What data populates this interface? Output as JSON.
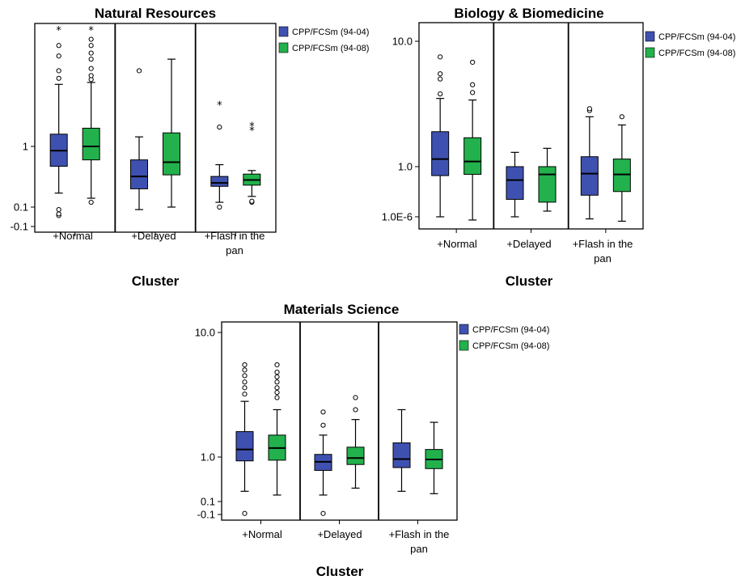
{
  "colors": {
    "series1": "#3f51b0",
    "series2": "#22b14c",
    "frame": "#000000",
    "background": "#ffffff"
  },
  "chart_data": [
    {
      "type": "box",
      "title": "Natural Resources",
      "xlabel": "Cluster",
      "ylabel": "",
      "y_scale": "log-like",
      "y_ticks": [
        "1",
        "0.1",
        "-0.1"
      ],
      "categories": [
        "+Normal",
        "+Delayed",
        "+Flash in the pan"
      ],
      "legend": {
        "position": "top-right",
        "entries": [
          "CPP/FCSm (94-04)",
          "CPP/FCSm (94-08)"
        ]
      },
      "series": [
        {
          "name": "CPP/FCSm (94-04)",
          "boxes": [
            {
              "category": "+Normal",
              "min": 0.17,
              "q1": 0.47,
              "median": 0.85,
              "q3": 1.4,
              "max": 5.5,
              "outliers": [
                {
                  "value": 0.07,
                  "marker": "circle"
                },
                {
                  "value": 0.075,
                  "marker": "circle"
                },
                {
                  "value": 0.09,
                  "marker": "circle"
                },
                {
                  "value": 6.5,
                  "marker": "circle"
                },
                {
                  "value": 8,
                  "marker": "circle"
                },
                {
                  "value": 12,
                  "marker": "circle"
                },
                {
                  "value": 16,
                  "marker": "circle"
                },
                {
                  "value": 25,
                  "marker": "star"
                }
              ]
            },
            {
              "category": "+Delayed",
              "min": 0.09,
              "q1": 0.2,
              "median": 0.32,
              "q3": 0.6,
              "max": 1.3,
              "outliers": [
                {
                  "value": 8,
                  "marker": "circle"
                }
              ]
            },
            {
              "category": "+Flash in the pan",
              "min": 0.12,
              "q1": 0.22,
              "median": 0.25,
              "q3": 0.32,
              "max": 0.5,
              "outliers": [
                {
                  "value": 0.1,
                  "marker": "circle"
                },
                {
                  "value": 1.7,
                  "marker": "circle"
                },
                {
                  "value": 3.2,
                  "marker": "star"
                }
              ]
            }
          ]
        },
        {
          "name": "CPP/FCSm (94-08)",
          "boxes": [
            {
              "category": "+Normal",
              "min": 0.14,
              "q1": 0.6,
              "median": 1.0,
              "q3": 1.65,
              "max": 5.8,
              "outliers": [
                {
                  "value": 0.12,
                  "marker": "circle"
                },
                {
                  "value": 6.3,
                  "marker": "circle"
                },
                {
                  "value": 7,
                  "marker": "circle"
                },
                {
                  "value": 8.5,
                  "marker": "circle"
                },
                {
                  "value": 11,
                  "marker": "circle"
                },
                {
                  "value": 13,
                  "marker": "circle"
                },
                {
                  "value": 16,
                  "marker": "circle"
                },
                {
                  "value": 19,
                  "marker": "circle"
                },
                {
                  "value": 25,
                  "marker": "star"
                }
              ]
            },
            {
              "category": "+Delayed",
              "min": 0.1,
              "q1": 0.34,
              "median": 0.55,
              "q3": 1.45,
              "max": 11,
              "outliers": []
            },
            {
              "category": "+Flash in the pan",
              "min": 0.15,
              "q1": 0.23,
              "median": 0.28,
              "q3": 0.35,
              "max": 0.4,
              "outliers": [
                {
                  "value": 0.12,
                  "marker": "circle"
                },
                {
                  "value": 0.125,
                  "marker": "circle"
                },
                {
                  "value": 1.6,
                  "marker": "star"
                },
                {
                  "value": 1.8,
                  "marker": "star"
                }
              ]
            }
          ]
        }
      ]
    },
    {
      "type": "box",
      "title": "Biology & Biomedicine",
      "xlabel": "Cluster",
      "ylabel": "",
      "y_scale": "log-like",
      "y_ticks": [
        "10.0",
        "1.0",
        "1.0E-6"
      ],
      "categories": [
        "+Normal",
        "+Delayed",
        "+Flash in the pan"
      ],
      "legend": {
        "position": "top-right",
        "entries": [
          "CPP/FCSm (94-04)",
          "CPP/FCSm (94-08)"
        ]
      },
      "series": [
        {
          "name": "CPP/FCSm (94-04)",
          "boxes": [
            {
              "category": "+Normal",
              "min": 0.2,
              "q1": 0.75,
              "median": 1.15,
              "q3": 1.9,
              "max": 3.5,
              "outliers": [
                {
                  "value": 3.8,
                  "marker": "circle"
                },
                {
                  "value": 5,
                  "marker": "circle"
                },
                {
                  "value": 5.5,
                  "marker": "circle"
                },
                {
                  "value": 7.5,
                  "marker": "circle"
                }
              ]
            },
            {
              "category": "+Delayed",
              "min": 0.2,
              "q1": 0.35,
              "median": 0.65,
              "q3": 1.0,
              "max": 1.3,
              "outliers": []
            },
            {
              "category": "+Flash in the pan",
              "min": 0.18,
              "q1": 0.4,
              "median": 0.8,
              "q3": 1.2,
              "max": 2.5,
              "outliers": [
                {
                  "value": 2.8,
                  "marker": "circle"
                },
                {
                  "value": 2.9,
                  "marker": "circle"
                }
              ]
            }
          ]
        },
        {
          "name": "CPP/FCSm (94-08)",
          "boxes": [
            {
              "category": "+Normal",
              "min": 0.17,
              "q1": 0.78,
              "median": 1.1,
              "q3": 1.7,
              "max": 3.4,
              "outliers": [
                {
                  "value": 3.9,
                  "marker": "circle"
                },
                {
                  "value": 4.5,
                  "marker": "circle"
                },
                {
                  "value": 6.8,
                  "marker": "circle"
                }
              ]
            },
            {
              "category": "+Delayed",
              "min": 0.24,
              "q1": 0.32,
              "median": 0.78,
              "q3": 1.0,
              "max": 1.4,
              "outliers": []
            },
            {
              "category": "+Flash in the pan",
              "min": 0.16,
              "q1": 0.45,
              "median": 0.78,
              "q3": 1.15,
              "max": 2.15,
              "outliers": [
                {
                  "value": 2.5,
                  "marker": "circle"
                }
              ]
            }
          ]
        }
      ]
    },
    {
      "type": "box",
      "title": "Materials Science",
      "xlabel": "Cluster",
      "ylabel": "",
      "y_scale": "log-like",
      "y_ticks": [
        "10.0",
        "1.0",
        "0.1",
        "-0.1"
      ],
      "categories": [
        "+Normal",
        "+Delayed",
        "+Flash in the pan"
      ],
      "legend": {
        "position": "top-right",
        "entries": [
          "CPP/FCSm (94-04)",
          "CPP/FCSm (94-08)"
        ]
      },
      "series": [
        {
          "name": "CPP/FCSm (94-04)",
          "boxes": [
            {
              "category": "+Normal",
              "min": 0.17,
              "q1": 0.82,
              "median": 1.15,
              "q3": 1.6,
              "max": 2.8,
              "outliers": [
                {
                  "value": 0.06,
                  "marker": "circle"
                },
                {
                  "value": 3.2,
                  "marker": "circle"
                },
                {
                  "value": 3.6,
                  "marker": "circle"
                },
                {
                  "value": 4.0,
                  "marker": "circle"
                },
                {
                  "value": 4.5,
                  "marker": "circle"
                },
                {
                  "value": 5.0,
                  "marker": "circle"
                },
                {
                  "value": 5.5,
                  "marker": "circle"
                }
              ]
            },
            {
              "category": "+Delayed",
              "min": 0.14,
              "q1": 0.5,
              "median": 0.78,
              "q3": 1.05,
              "max": 1.5,
              "outliers": [
                {
                  "value": 0.06,
                  "marker": "circle"
                },
                {
                  "value": 1.8,
                  "marker": "circle"
                },
                {
                  "value": 2.3,
                  "marker": "circle"
                }
              ]
            },
            {
              "category": "+Flash in the pan",
              "min": 0.17,
              "q1": 0.58,
              "median": 0.9,
              "q3": 1.3,
              "max": 2.4,
              "outliers": []
            }
          ]
        },
        {
          "name": "CPP/FCSm (94-08)",
          "boxes": [
            {
              "category": "+Normal",
              "min": 0.14,
              "q1": 0.85,
              "median": 1.18,
              "q3": 1.5,
              "max": 2.4,
              "outliers": [
                {
                  "value": 3.0,
                  "marker": "circle"
                },
                {
                  "value": 3.3,
                  "marker": "circle"
                },
                {
                  "value": 3.6,
                  "marker": "circle"
                },
                {
                  "value": 4.0,
                  "marker": "circle"
                },
                {
                  "value": 4.4,
                  "marker": "circle"
                },
                {
                  "value": 4.8,
                  "marker": "circle"
                },
                {
                  "value": 5.5,
                  "marker": "circle"
                }
              ]
            },
            {
              "category": "+Delayed",
              "min": 0.2,
              "q1": 0.68,
              "median": 0.95,
              "q3": 1.2,
              "max": 2.0,
              "outliers": [
                {
                  "value": 2.4,
                  "marker": "circle"
                },
                {
                  "value": 3.0,
                  "marker": "circle"
                }
              ]
            },
            {
              "category": "+Flash in the pan",
              "min": 0.15,
              "q1": 0.55,
              "median": 0.88,
              "q3": 1.15,
              "max": 1.9,
              "outliers": []
            }
          ]
        }
      ]
    }
  ]
}
